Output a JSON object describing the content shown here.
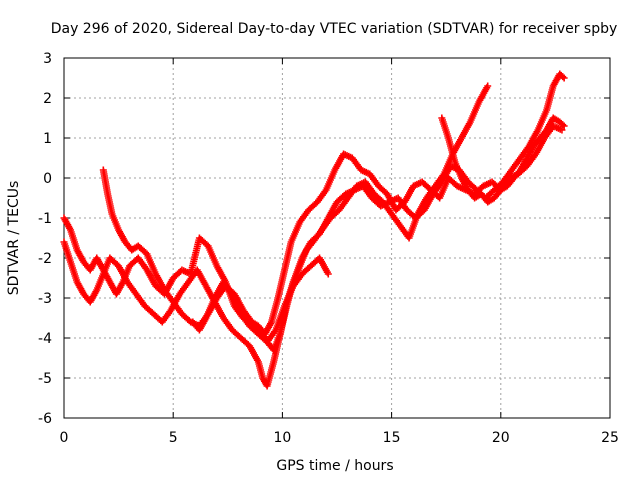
{
  "chart_data": {
    "type": "scatter",
    "title": "Day 296 of 2020, Sidereal Day-to-day VTEC variation (SDTVAR) for receiver spby",
    "xlabel": "GPS time / hours",
    "ylabel": "SDTVAR / TECUs",
    "xlim": [
      0,
      25
    ],
    "ylim": [
      -6,
      3
    ],
    "xticks": [
      "0",
      "5",
      "10",
      "15",
      "20",
      "25"
    ],
    "yticks": [
      "3",
      "2",
      "1",
      "0",
      "-1",
      "-2",
      "-3",
      "-4",
      "-5",
      "-6"
    ],
    "grid": true,
    "marker": "+",
    "color": "#ff0000",
    "series": [
      {
        "x": [
          0.0,
          0.3,
          0.6,
          0.9,
          1.2,
          1.5,
          1.8,
          2.1,
          2.4,
          2.7,
          3.0,
          3.4,
          3.8,
          4.2,
          4.6,
          5.0,
          5.4,
          5.8,
          6.2,
          6.6,
          7.0,
          7.4,
          7.8,
          8.2,
          8.6,
          8.9,
          9.2,
          9.5,
          9.8,
          10.1,
          10.4,
          10.8,
          11.2,
          11.6,
          12.0,
          12.4,
          12.8,
          13.2,
          13.6,
          14.0,
          14.4,
          14.8,
          15.2,
          15.6,
          16.0,
          16.4,
          16.8,
          17.2,
          17.6,
          18.0,
          18.4,
          18.8,
          19.2,
          19.6,
          20.0,
          20.4,
          20.8,
          21.2,
          21.6,
          22.0,
          22.4,
          22.8
        ],
        "y": [
          -1.0,
          -1.3,
          -1.8,
          -2.1,
          -2.3,
          -2.0,
          -2.3,
          -2.6,
          -2.9,
          -2.6,
          -2.2,
          -2.0,
          -2.3,
          -2.7,
          -2.9,
          -2.5,
          -2.3,
          -2.4,
          -1.5,
          -1.7,
          -2.2,
          -2.6,
          -3.2,
          -3.5,
          -3.6,
          -3.7,
          -3.9,
          -3.6,
          -3.0,
          -2.3,
          -1.6,
          -1.1,
          -0.8,
          -0.6,
          -0.3,
          0.2,
          0.6,
          0.5,
          0.2,
          0.1,
          -0.2,
          -0.4,
          -0.8,
          -0.6,
          -0.2,
          -0.1,
          -0.3,
          -0.5,
          0.0,
          -0.2,
          -0.3,
          -0.4,
          -0.2,
          -0.1,
          -0.3,
          0.0,
          0.1,
          0.3,
          0.6,
          1.0,
          1.3,
          1.2
        ]
      },
      {
        "x": [
          0.0,
          0.3,
          0.6,
          0.9,
          1.2,
          1.5,
          1.8,
          2.1,
          2.5,
          2.9,
          3.3,
          3.7,
          4.1,
          4.5,
          4.9,
          5.3,
          5.7,
          6.1,
          6.5,
          6.9,
          7.3,
          7.7,
          8.1,
          8.5,
          8.9,
          9.1,
          9.3,
          9.6,
          9.9,
          10.2,
          10.5,
          10.8,
          11.1,
          11.4,
          11.8,
          12.2,
          12.6,
          13.0,
          13.4,
          13.8,
          14.2,
          14.6,
          15.0,
          15.4,
          15.8,
          16.2,
          16.6,
          17.0,
          17.4,
          17.8,
          18.2,
          18.6,
          19.0,
          19.4
        ],
        "y": [
          -1.6,
          -2.1,
          -2.6,
          -2.9,
          -3.1,
          -2.8,
          -2.4,
          -2.0,
          -2.2,
          -2.6,
          -2.9,
          -3.2,
          -3.4,
          -3.6,
          -3.3,
          -2.9,
          -2.6,
          -2.3,
          -2.7,
          -3.1,
          -3.5,
          -3.8,
          -4.0,
          -4.2,
          -4.6,
          -5.0,
          -5.2,
          -4.6,
          -3.9,
          -3.1,
          -2.6,
          -2.2,
          -1.8,
          -1.6,
          -1.3,
          -1.0,
          -0.8,
          -0.5,
          -0.2,
          -0.1,
          -0.4,
          -0.6,
          -0.9,
          -1.2,
          -1.5,
          -0.9,
          -0.5,
          -0.2,
          0.1,
          0.6,
          1.0,
          1.4,
          1.9,
          2.3
        ]
      },
      {
        "x": [
          1.8,
          2.0,
          2.2,
          2.5,
          2.8,
          3.1,
          3.4,
          3.8,
          4.2,
          4.6,
          5.0,
          5.4,
          5.8,
          6.2,
          6.6,
          7.0,
          7.4,
          7.8,
          8.2,
          8.6,
          9.0,
          9.3,
          9.6,
          9.9,
          10.2,
          10.5,
          10.9,
          11.3,
          11.7,
          12.1,
          12.5,
          12.9,
          13.3,
          13.7,
          14.1,
          14.5,
          14.9,
          15.3,
          15.7,
          16.1,
          16.5,
          16.9,
          17.3,
          17.7,
          18.1,
          18.5,
          18.9,
          19.3,
          19.7,
          20.1,
          20.5,
          20.9,
          21.3,
          21.7,
          22.1,
          22.4,
          22.7,
          22.9
        ],
        "y": [
          0.2,
          -0.4,
          -0.9,
          -1.3,
          -1.6,
          -1.8,
          -1.7,
          -1.9,
          -2.4,
          -2.8,
          -3.1,
          -3.4,
          -3.6,
          -3.7,
          -3.4,
          -3.0,
          -2.7,
          -2.9,
          -3.3,
          -3.6,
          -3.8,
          -4.1,
          -4.3,
          -3.9,
          -3.2,
          -2.6,
          -2.0,
          -1.6,
          -1.4,
          -1.0,
          -0.6,
          -0.4,
          -0.3,
          -0.2,
          -0.5,
          -0.7,
          -0.6,
          -0.5,
          -0.8,
          -1.0,
          -0.8,
          -0.4,
          -0.1,
          0.3,
          0.2,
          -0.1,
          -0.3,
          -0.5,
          -0.3,
          -0.1,
          0.2,
          0.5,
          0.8,
          1.2,
          1.7,
          2.3,
          2.6,
          2.5
        ]
      },
      {
        "x": [
          5.9,
          6.2,
          6.5,
          6.9,
          7.3,
          7.7,
          8.1,
          8.5,
          8.9,
          9.3,
          9.7,
          10.1,
          10.5,
          10.9,
          11.3,
          11.7,
          12.1
        ],
        "y": [
          -3.6,
          -3.8,
          -3.5,
          -3.0,
          -2.6,
          -2.9,
          -3.4,
          -3.7,
          -3.9,
          -4.1,
          -3.8,
          -3.2,
          -2.7,
          -2.4,
          -2.2,
          -2.0,
          -2.4
        ]
      },
      {
        "x": [
          17.3,
          17.6,
          17.9,
          18.2,
          18.5,
          18.8,
          19.1,
          19.4,
          19.7,
          20.0,
          20.3,
          20.6,
          20.9,
          21.2,
          21.5,
          21.8,
          22.1,
          22.4,
          22.7,
          22.9
        ],
        "y": [
          1.5,
          1.0,
          0.4,
          0.0,
          -0.3,
          -0.5,
          -0.4,
          -0.6,
          -0.5,
          -0.3,
          -0.2,
          0.0,
          0.2,
          0.5,
          0.8,
          1.0,
          1.2,
          1.5,
          1.4,
          1.3
        ]
      }
    ]
  }
}
